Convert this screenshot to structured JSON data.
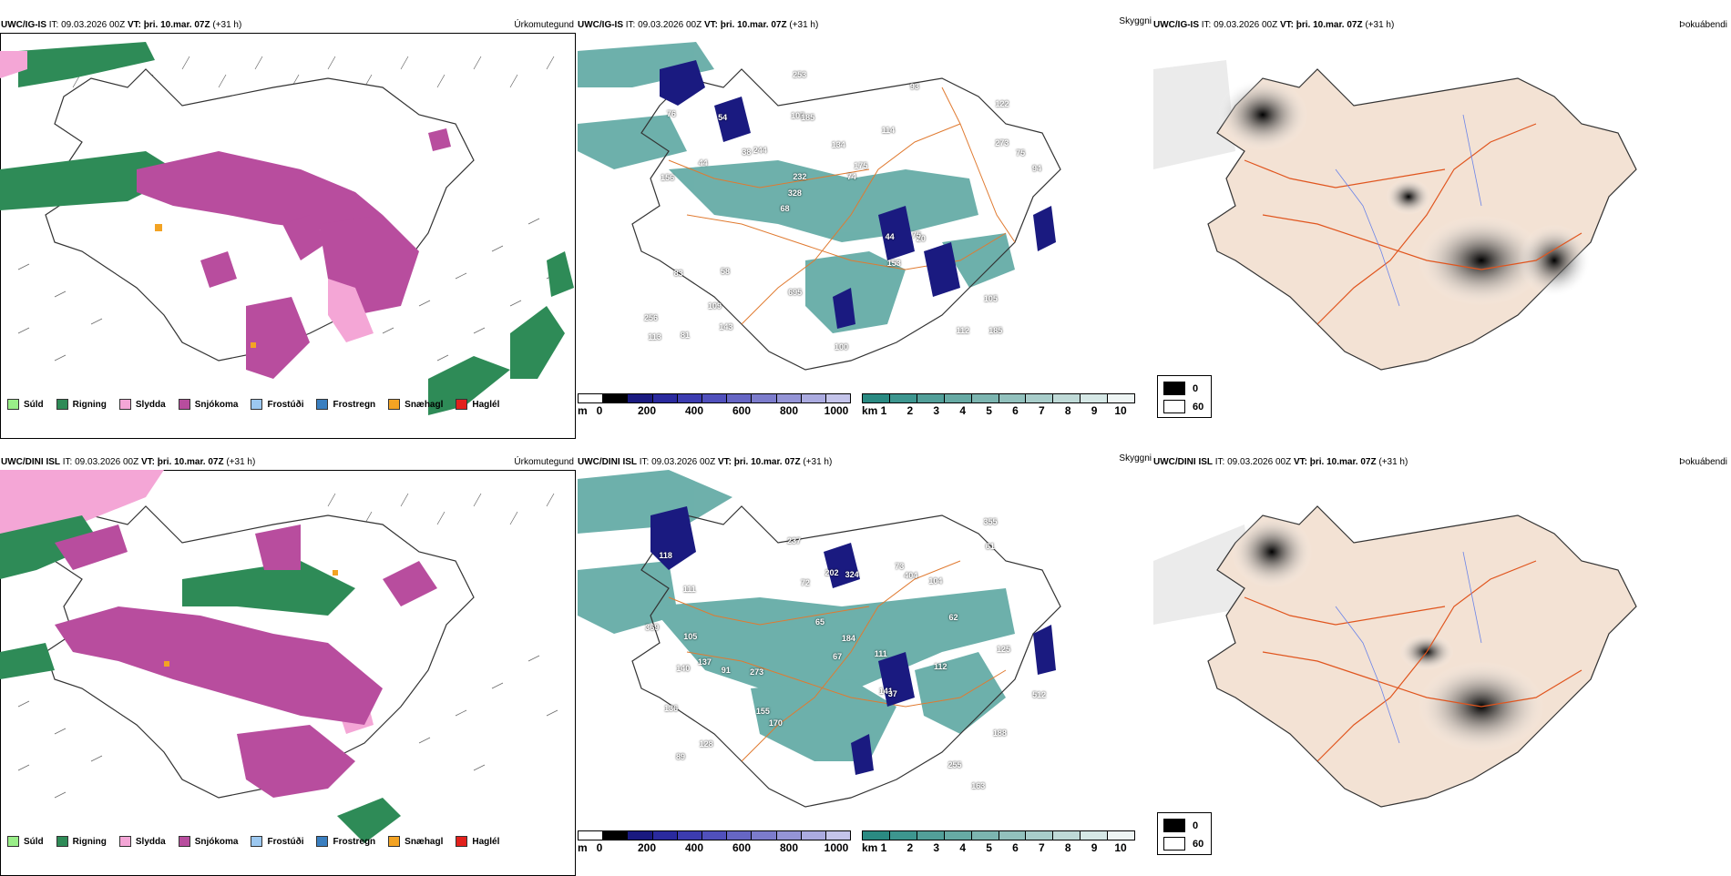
{
  "rows": [
    {
      "precip": {
        "model": "UWC/IG-IS",
        "it_label": "IT:",
        "it": "09.03.2026 00Z",
        "vt_label": "VT:",
        "vt": "þri. 10.mar. 07Z",
        "lead": "(+31 h)",
        "name": "Úrkomutegund"
      },
      "cloudbase": {
        "model": "UWC/IG-IS",
        "it_label": "IT:",
        "it": "09.03.2026 00Z",
        "vt_label": "VT:",
        "vt": "þri. 10.mar. 07Z",
        "lead": "(+31 h)",
        "name": "Skyggni"
      },
      "fog": {
        "model": "UWC/IG-IS",
        "it_label": "IT:",
        "it": "09.03.2026 00Z",
        "vt_label": "VT:",
        "vt": "þri. 10.mar. 07Z",
        "lead": "(+31 h)",
        "name": "Þokuábendi"
      },
      "cloud_numbers": [
        "185",
        "156",
        "122",
        "68",
        "114",
        "81",
        "107",
        "134",
        "83",
        "244",
        "256",
        "109",
        "185",
        "175",
        "20",
        "76",
        "253",
        "94",
        "44",
        "273",
        "328",
        "695",
        "232",
        "54",
        "93",
        "58",
        "112",
        "105",
        "75",
        "100",
        "38",
        "44",
        "153",
        "143",
        "75",
        "74",
        "113"
      ]
    },
    {
      "precip": {
        "model": "UWC/DINI ISL",
        "it_label": "IT:",
        "it": "09.03.2026 00Z",
        "vt_label": "VT:",
        "vt": "þri. 10.mar. 07Z",
        "lead": "(+31 h)",
        "name": "Úrkomutegund"
      },
      "cloudbase": {
        "model": "UWC/DINI ISL",
        "it_label": "IT:",
        "it": "09.03.2026 00Z",
        "vt_label": "VT:",
        "vt": "þri. 10.mar. 07Z",
        "lead": "(+31 h)",
        "name": "Skyggni"
      },
      "fog": {
        "model": "UWC/DINI ISL",
        "it_label": "IT:",
        "it": "09.03.2026 00Z",
        "vt_label": "VT:",
        "vt": "þri. 10.mar. 07Z",
        "lead": "(+31 h)",
        "name": "Þokuábendi"
      },
      "cloud_numbers": [
        "163",
        "137",
        "141",
        "118",
        "188",
        "111",
        "128",
        "273",
        "104",
        "202",
        "404",
        "255",
        "170",
        "237",
        "111",
        "136",
        "112",
        "184",
        "369",
        "89",
        "355",
        "324",
        "62",
        "512",
        "125",
        "105",
        "91",
        "67",
        "65",
        "61",
        "37",
        "140",
        "155",
        "73",
        "72"
      ]
    }
  ],
  "precip_legend": [
    {
      "label": "Súld",
      "color": "#99ee88"
    },
    {
      "label": "Rigning",
      "color": "#2e8b57"
    },
    {
      "label": "Slydda",
      "color": "#f4a6d6"
    },
    {
      "label": "Snjókoma",
      "color": "#b84d9e"
    },
    {
      "label": "Frostúði",
      "color": "#9cc8f0"
    },
    {
      "label": "Frostregn",
      "color": "#3a7fc0"
    },
    {
      "label": "Snæhagl",
      "color": "#f3a323"
    },
    {
      "label": "Haglél",
      "color": "#e2211c"
    }
  ],
  "cloudbase_colorbar": {
    "unit": "m",
    "ticks": [
      "0",
      "200",
      "400",
      "600",
      "800",
      "1000"
    ],
    "colors": [
      "#ffffff",
      "#000000",
      "#1a1a80",
      "#2a2a9e",
      "#3c3cb0",
      "#5050bc",
      "#6666c4",
      "#7c7ccc",
      "#9494d6",
      "#ababe0",
      "#c4c4ea"
    ]
  },
  "visibility_colorbar": {
    "unit": "km",
    "ticks": [
      "1",
      "2",
      "3",
      "4",
      "5",
      "6",
      "7",
      "8",
      "9",
      "10"
    ],
    "colors": [
      "#2a8a82",
      "#3d968f",
      "#529f99",
      "#67aaa4",
      "#7cb5b0",
      "#92c1bd",
      "#a8cdca",
      "#bfdad7",
      "#d6e8e6",
      "#eef5f4"
    ]
  },
  "fog_legend": [
    {
      "label": "0",
      "color": "#000000"
    },
    {
      "label": "60",
      "color": "#ffffff"
    }
  ],
  "colors": {
    "land_fill": "#f3e2d4",
    "coast": "#333333",
    "roads": "#e0551e",
    "rivers": "#6b84e8",
    "wind": "#555555"
  }
}
